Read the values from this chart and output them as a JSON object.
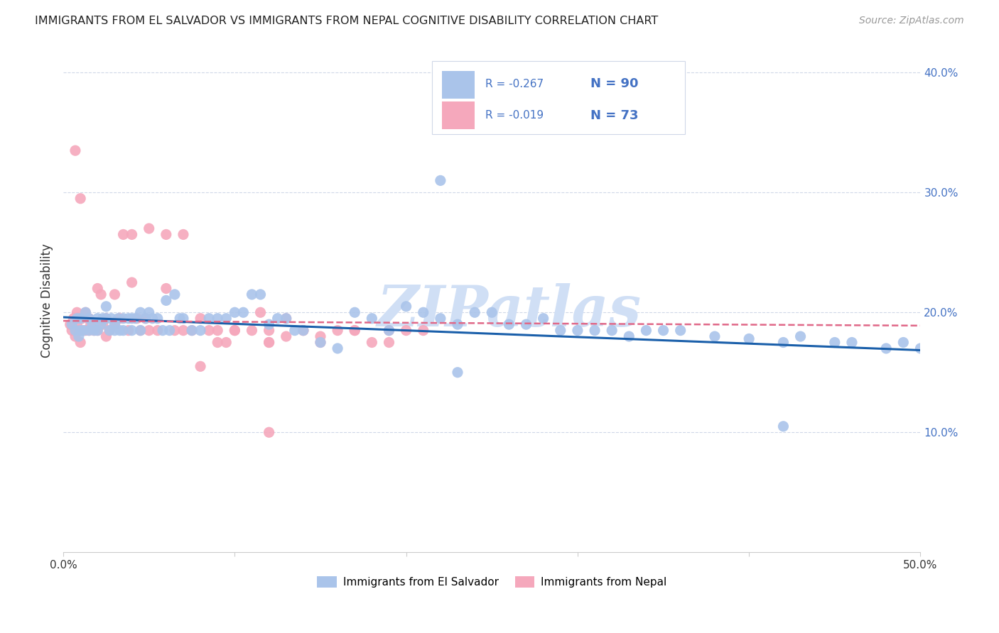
{
  "title": "IMMIGRANTS FROM EL SALVADOR VS IMMIGRANTS FROM NEPAL COGNITIVE DISABILITY CORRELATION CHART",
  "source": "Source: ZipAtlas.com",
  "ylabel": "Cognitive Disability",
  "xlim": [
    0.0,
    0.5
  ],
  "ylim": [
    0.0,
    0.42
  ],
  "xticks": [
    0.0,
    0.1,
    0.2,
    0.3,
    0.4,
    0.5
  ],
  "xticklabels": [
    "0.0%",
    "",
    "",
    "",
    "",
    "50.0%"
  ],
  "yticks_right": [
    0.1,
    0.2,
    0.3,
    0.4
  ],
  "ytick_right_labels": [
    "10.0%",
    "20.0%",
    "30.0%",
    "40.0%"
  ],
  "el_salvador_color": "#aac4ea",
  "nepal_color": "#f5a8bc",
  "el_salvador_line_color": "#1a5faa",
  "nepal_line_color": "#e06888",
  "R_el_salvador": -0.267,
  "N_el_salvador": 90,
  "R_nepal": -0.019,
  "N_nepal": 73,
  "watermark": "ZIPatlas",
  "watermark_color": "#d0dff5",
  "background_color": "#ffffff",
  "grid_color": "#d0d8e8",
  "legend_label_1": "Immigrants from El Salvador",
  "legend_label_2": "Immigrants from Nepal",
  "legend_text_color": "#4472c4",
  "legend_r_color": "#333333",
  "el_salvador_scatter_x": [
    0.005,
    0.007,
    0.008,
    0.009,
    0.01,
    0.01,
    0.012,
    0.013,
    0.015,
    0.015,
    0.017,
    0.018,
    0.02,
    0.02,
    0.022,
    0.023,
    0.025,
    0.025,
    0.027,
    0.028,
    0.03,
    0.03,
    0.032,
    0.033,
    0.035,
    0.035,
    0.038,
    0.04,
    0.04,
    0.042,
    0.045,
    0.045,
    0.048,
    0.05,
    0.052,
    0.055,
    0.058,
    0.06,
    0.062,
    0.065,
    0.068,
    0.07,
    0.075,
    0.08,
    0.085,
    0.09,
    0.095,
    0.1,
    0.105,
    0.11,
    0.115,
    0.12,
    0.125,
    0.13,
    0.135,
    0.14,
    0.15,
    0.16,
    0.17,
    0.18,
    0.19,
    0.2,
    0.21,
    0.22,
    0.23,
    0.24,
    0.25,
    0.26,
    0.27,
    0.28,
    0.29,
    0.3,
    0.31,
    0.32,
    0.33,
    0.34,
    0.35,
    0.36,
    0.38,
    0.4,
    0.42,
    0.43,
    0.45,
    0.46,
    0.48,
    0.49,
    0.5,
    0.22,
    0.23,
    0.42
  ],
  "el_salvador_scatter_y": [
    0.19,
    0.185,
    0.195,
    0.18,
    0.185,
    0.195,
    0.185,
    0.2,
    0.195,
    0.185,
    0.19,
    0.185,
    0.195,
    0.185,
    0.19,
    0.195,
    0.205,
    0.195,
    0.185,
    0.195,
    0.19,
    0.185,
    0.195,
    0.185,
    0.195,
    0.185,
    0.195,
    0.195,
    0.185,
    0.195,
    0.2,
    0.185,
    0.195,
    0.2,
    0.195,
    0.195,
    0.185,
    0.21,
    0.185,
    0.215,
    0.195,
    0.195,
    0.185,
    0.185,
    0.195,
    0.195,
    0.195,
    0.2,
    0.2,
    0.215,
    0.215,
    0.19,
    0.195,
    0.195,
    0.185,
    0.185,
    0.175,
    0.17,
    0.2,
    0.195,
    0.185,
    0.205,
    0.2,
    0.195,
    0.19,
    0.2,
    0.2,
    0.19,
    0.19,
    0.195,
    0.185,
    0.185,
    0.185,
    0.185,
    0.18,
    0.185,
    0.185,
    0.185,
    0.18,
    0.178,
    0.175,
    0.18,
    0.175,
    0.175,
    0.17,
    0.175,
    0.17,
    0.31,
    0.15,
    0.105
  ],
  "nepal_scatter_x": [
    0.004,
    0.005,
    0.006,
    0.007,
    0.008,
    0.008,
    0.009,
    0.01,
    0.01,
    0.011,
    0.012,
    0.013,
    0.013,
    0.015,
    0.015,
    0.016,
    0.018,
    0.02,
    0.02,
    0.022,
    0.023,
    0.025,
    0.025,
    0.027,
    0.03,
    0.03,
    0.033,
    0.035,
    0.038,
    0.04,
    0.043,
    0.045,
    0.048,
    0.05,
    0.055,
    0.06,
    0.065,
    0.07,
    0.075,
    0.08,
    0.085,
    0.09,
    0.095,
    0.1,
    0.11,
    0.115,
    0.12,
    0.13,
    0.14,
    0.15,
    0.16,
    0.17,
    0.18,
    0.19,
    0.2,
    0.04,
    0.05,
    0.06,
    0.07,
    0.08,
    0.09,
    0.1,
    0.12,
    0.14,
    0.12,
    0.13,
    0.15,
    0.17,
    0.19,
    0.21,
    0.007,
    0.01,
    0.12
  ],
  "nepal_scatter_y": [
    0.19,
    0.185,
    0.195,
    0.18,
    0.19,
    0.2,
    0.185,
    0.195,
    0.175,
    0.195,
    0.185,
    0.2,
    0.185,
    0.195,
    0.185,
    0.19,
    0.185,
    0.22,
    0.185,
    0.215,
    0.19,
    0.195,
    0.18,
    0.185,
    0.215,
    0.19,
    0.195,
    0.265,
    0.185,
    0.225,
    0.195,
    0.185,
    0.195,
    0.185,
    0.185,
    0.22,
    0.185,
    0.185,
    0.185,
    0.195,
    0.185,
    0.185,
    0.175,
    0.185,
    0.185,
    0.2,
    0.185,
    0.18,
    0.185,
    0.18,
    0.185,
    0.185,
    0.175,
    0.185,
    0.185,
    0.265,
    0.27,
    0.265,
    0.265,
    0.155,
    0.175,
    0.185,
    0.175,
    0.185,
    0.175,
    0.195,
    0.175,
    0.185,
    0.175,
    0.185,
    0.335,
    0.295,
    0.1
  ]
}
